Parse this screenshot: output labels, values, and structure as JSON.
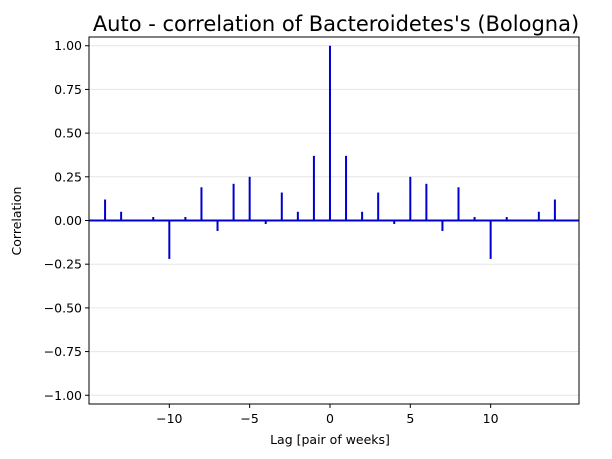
{
  "chart_data": {
    "type": "bar",
    "title": "Auto - correlation of Bacteroidetes's (Bologna)",
    "xlabel": "Lag [pair of weeks]",
    "ylabel": "Correlation",
    "xlim": [
      -15,
      15.5
    ],
    "ylim": [
      -1.05,
      1.05
    ],
    "xticks": [
      -10,
      -5,
      0,
      5,
      10
    ],
    "yticks": [
      -1.0,
      -0.75,
      -0.5,
      -0.25,
      0.0,
      0.25,
      0.5,
      0.75,
      1.0
    ],
    "ytick_labels": [
      "−1.00",
      "−0.75",
      "−0.50",
      "−0.25",
      "0.00",
      "0.25",
      "0.50",
      "0.75",
      "1.00"
    ],
    "xtick_labels": [
      "−10",
      "−5",
      "0",
      "5",
      "10"
    ],
    "grid": "horizontal",
    "color": "#0000cc",
    "lags": [
      -14,
      -13,
      -12,
      -11,
      -10,
      -9,
      -8,
      -7,
      -6,
      -5,
      -4,
      -3,
      -2,
      -1,
      0,
      1,
      2,
      3,
      4,
      5,
      6,
      7,
      8,
      9,
      10,
      11,
      12,
      13,
      14
    ],
    "values": [
      0.12,
      0.05,
      0.0,
      0.02,
      -0.22,
      0.02,
      0.19,
      -0.06,
      0.21,
      0.25,
      -0.02,
      0.16,
      0.05,
      0.37,
      1.0,
      0.37,
      0.05,
      0.16,
      -0.02,
      0.25,
      0.21,
      -0.06,
      0.19,
      0.02,
      -0.22,
      0.02,
      0.0,
      0.05,
      0.12
    ]
  }
}
